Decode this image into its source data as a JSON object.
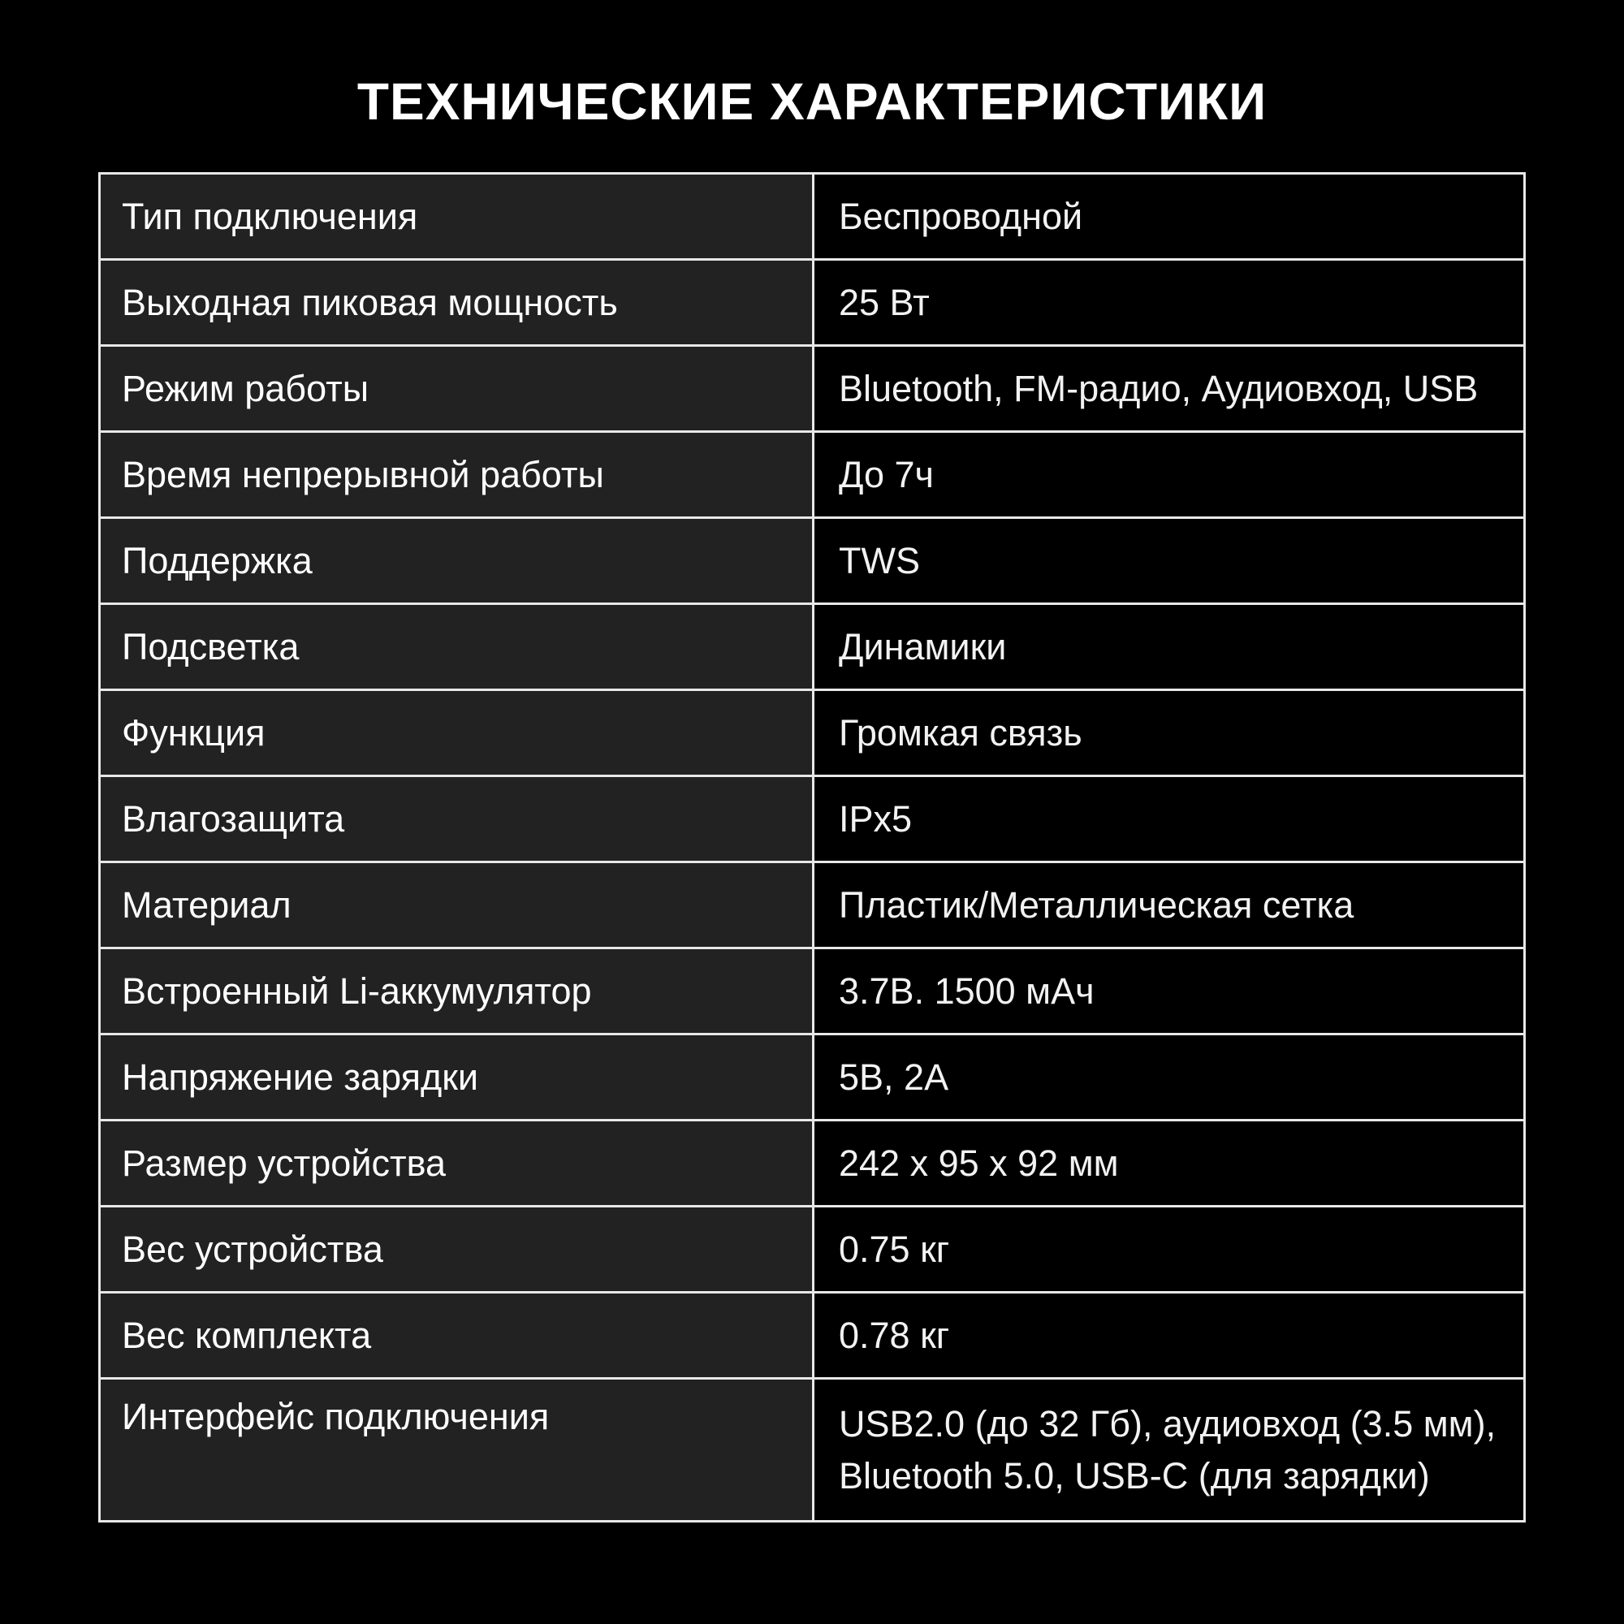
{
  "title": "ТЕХНИЧЕСКИЕ ХАРАКТЕРИСТИКИ",
  "specs": [
    {
      "label": "Тип подключения",
      "value": "Беспроводной"
    },
    {
      "label": "Выходная пиковая мощность",
      "value": "25 Вт"
    },
    {
      "label": "Режим работы",
      "value": "Bluetooth, FM-радио, Аудиовход, USB"
    },
    {
      "label": "Время непрерывной работы",
      "value": "До 7ч"
    },
    {
      "label": "Поддержка",
      "value": "TWS"
    },
    {
      "label": "Подсветка",
      "value": "Динамики"
    },
    {
      "label": "Функция",
      "value": "Громкая связь"
    },
    {
      "label": "Влагозащита",
      "value": "IPx5"
    },
    {
      "label": "Материал",
      "value": "Пластик/Металлическая сетка"
    },
    {
      "label": "Встроенный Li-аккумулятор",
      "value": "3.7В. 1500 мАч"
    },
    {
      "label": "Напряжение зарядки",
      "value": "5В, 2А"
    },
    {
      "label": "Размер устройства",
      "value": "242 x 95 x 92 мм"
    },
    {
      "label": "Вес устройства",
      "value": "0.75 кг"
    },
    {
      "label": "Вес комплекта",
      "value": "0.78 кг"
    },
    {
      "label": "Интерфейс подключения",
      "value": "USB2.0 (до 32 Гб), аудиовход (3.5 мм),",
      "value2": "Bluetooth 5.0, USB-C (для зарядки)"
    }
  ]
}
